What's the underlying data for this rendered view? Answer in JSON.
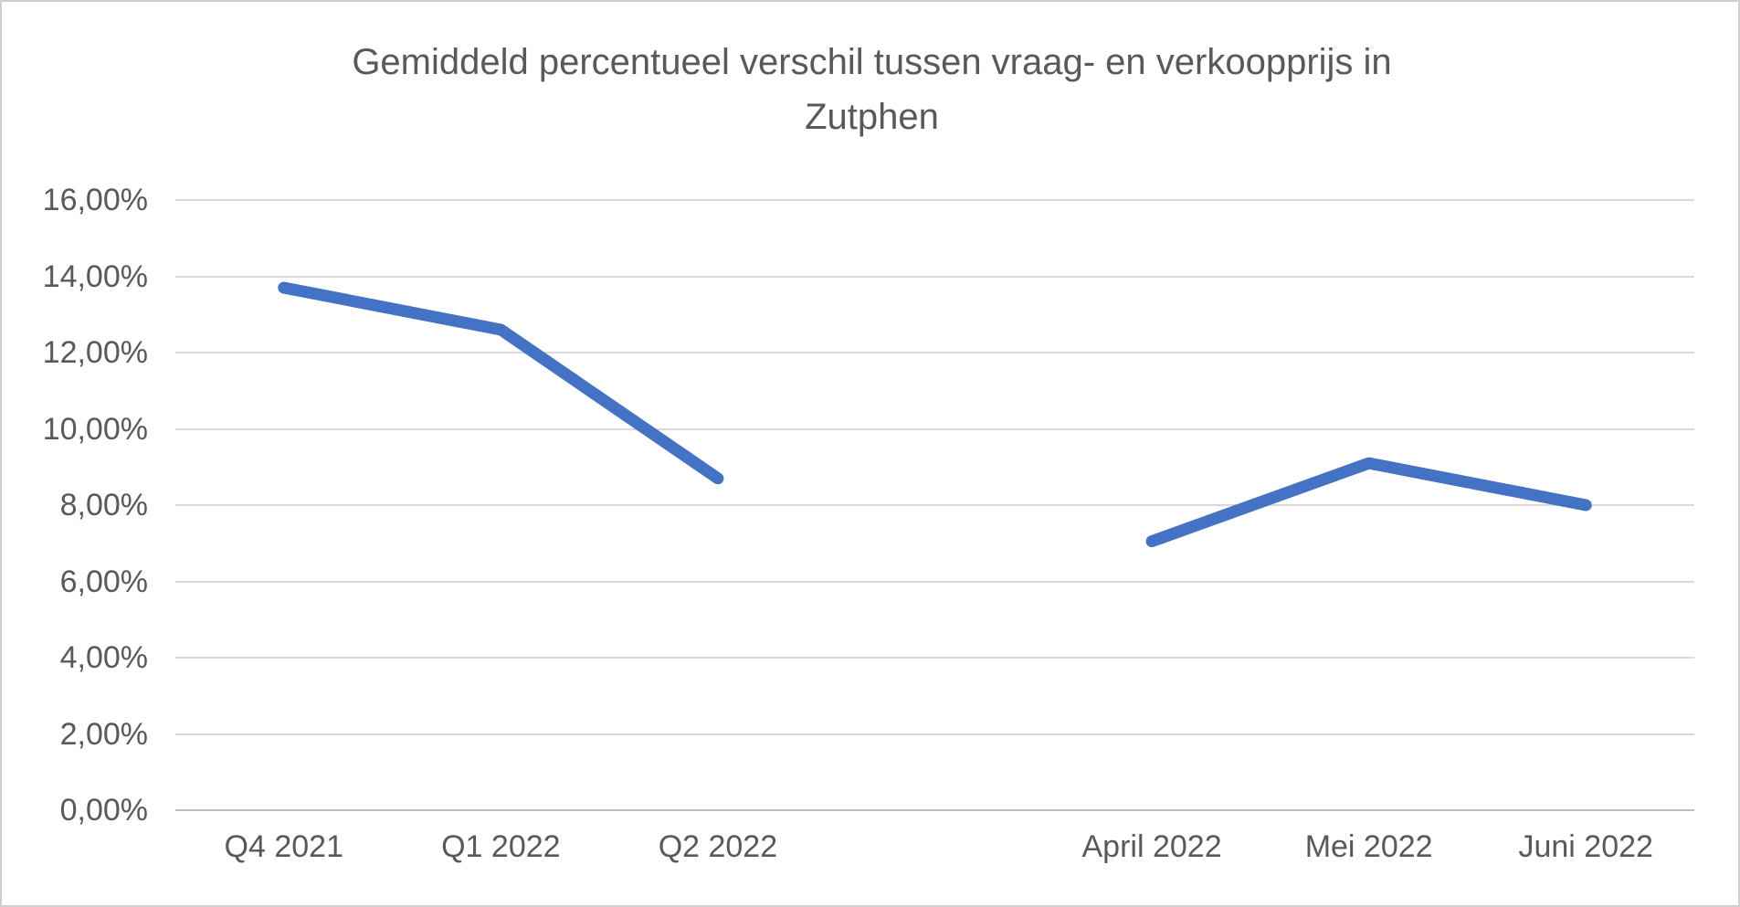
{
  "title": "Gemiddeld percentueel verschil tussen vraag- en verkoopprijs in Zutphen",
  "colors": {
    "series_line": "#4472C4",
    "gridline": "#D9D9D9",
    "axis_line": "#BFBFBF",
    "text": "#595959",
    "frame_border": "#CFCFCF"
  },
  "chart_data": {
    "type": "line",
    "title": "Gemiddeld percentueel verschil tussen vraag- en verkoopprijs in Zutphen",
    "categories": [
      "Q4 2021",
      "Q1 2022",
      "Q2 2022",
      "",
      "April 2022",
      "Mei 2022",
      "Juni 2022"
    ],
    "series": [
      {
        "name": "Gemiddeld percentueel verschil",
        "values": [
          13.7,
          12.6,
          8.7,
          null,
          7.05,
          9.1,
          8.0
        ],
        "color": "#4472C4"
      }
    ],
    "xlabel": "",
    "ylabel": "",
    "ylim": [
      0,
      16
    ],
    "ytick_step": 2,
    "ytick_labels": [
      "0,00%",
      "2,00%",
      "4,00%",
      "6,00%",
      "8,00%",
      "10,00%",
      "12,00%",
      "14,00%",
      "16,00%"
    ],
    "grid": true,
    "legend": false,
    "notes": "Single blue line with a gap (missing value) between Q2 2022 and April 2022"
  }
}
